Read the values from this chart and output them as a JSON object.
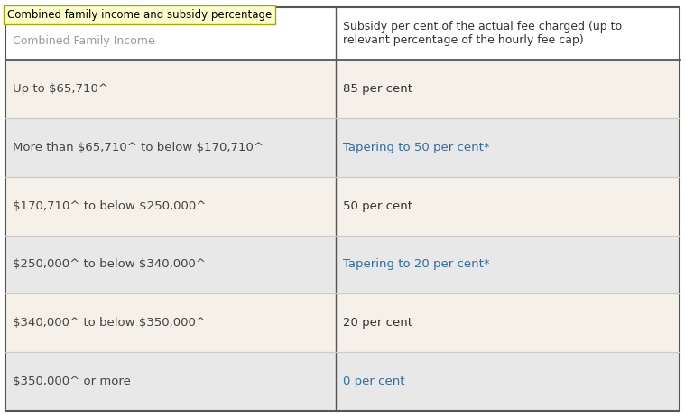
{
  "tooltip_text": "Combined family income and subsidy percentage",
  "header_col1": "Combined Family Income",
  "header_col2": "Subsidy per cent of the actual fee charged (up to\nrelevant percentage of the hourly fee cap)",
  "rows": [
    {
      "col1": "Up to $65,710^",
      "col2": "85 per cent",
      "col2_color": "#333333",
      "row_bg": "#f5f0e8"
    },
    {
      "col1": "More than $65,710^ to below $170,710^",
      "col2": "Tapering to 50 per cent*",
      "col2_color": "#2e6da4",
      "row_bg": "#e8e8e8"
    },
    {
      "col1": "$170,710^ to below $250,000^",
      "col2": "50 per cent",
      "col2_color": "#333333",
      "row_bg": "#f5f0e8"
    },
    {
      "col1": "$250,000^ to below $340,000^",
      "col2": "Tapering to 20 per cent*",
      "col2_color": "#2e6da4",
      "row_bg": "#e8e8e8"
    },
    {
      "col1": "$340,000^ to below $350,000^",
      "col2": "20 per cent",
      "col2_color": "#333333",
      "row_bg": "#f5f0e8"
    },
    {
      "col1": "$350,000^ or more",
      "col2": "0 per cent",
      "col2_color": "#2e6da4",
      "row_bg": "#e8e8e8"
    }
  ],
  "header_bg": "#ffffff",
  "header_text_color": "#333333",
  "border_color": "#555555",
  "divider_color": "#cccccc",
  "col_split": 0.49,
  "tooltip_bg": "#ffffcc",
  "tooltip_border": "#aaa800",
  "fig_bg": "#ffffff"
}
